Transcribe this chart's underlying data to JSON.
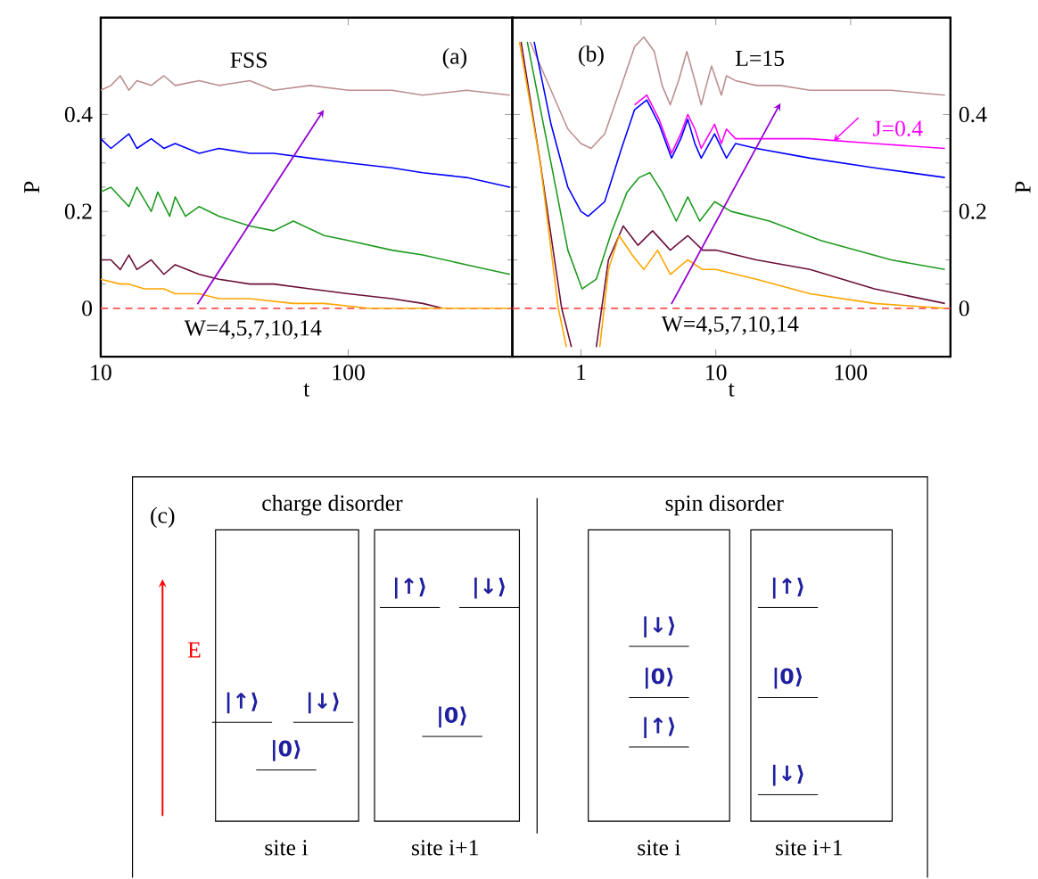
{
  "chart_data": [
    {
      "type": "line",
      "xlabel": "t",
      "ylabel": "P",
      "log": "x",
      "xlim": [
        10,
        460
      ],
      "ylim": [
        -0.1,
        0.6
      ],
      "xticks": [
        10,
        100
      ],
      "yticks": [
        0,
        0.2,
        0.4
      ],
      "annotations": [
        "FSS",
        "(a)",
        "W=4,5,7,10,14"
      ],
      "ref_lines": [
        {
          "axis": "y",
          "value": 0,
          "color": "#ff5050",
          "line_style": "dashed"
        }
      ],
      "series": [
        {
          "color": "#bc8f8f",
          "x": [
            10,
            11,
            12,
            13,
            14,
            16,
            18,
            20,
            25,
            30,
            40,
            50,
            70,
            100,
            150,
            200,
            300,
            450
          ],
          "values": [
            0.45,
            0.46,
            0.48,
            0.45,
            0.47,
            0.46,
            0.48,
            0.46,
            0.47,
            0.46,
            0.47,
            0.45,
            0.46,
            0.45,
            0.45,
            0.44,
            0.45,
            0.44
          ]
        },
        {
          "color": "#0000ff",
          "x": [
            10,
            11,
            13,
            14,
            16,
            18,
            20,
            25,
            30,
            40,
            50,
            70,
            100,
            150,
            200,
            300,
            450
          ],
          "values": [
            0.35,
            0.33,
            0.36,
            0.33,
            0.35,
            0.33,
            0.34,
            0.32,
            0.33,
            0.32,
            0.32,
            0.31,
            0.3,
            0.29,
            0.28,
            0.27,
            0.25
          ]
        },
        {
          "color": "#1e9a1e",
          "x": [
            10,
            11,
            13,
            14,
            16,
            17,
            19,
            20,
            22,
            25,
            30,
            40,
            50,
            60,
            80,
            100,
            150,
            200,
            300,
            450
          ],
          "values": [
            0.24,
            0.25,
            0.21,
            0.25,
            0.2,
            0.24,
            0.19,
            0.23,
            0.19,
            0.21,
            0.19,
            0.17,
            0.16,
            0.18,
            0.15,
            0.14,
            0.12,
            0.11,
            0.09,
            0.07
          ]
        },
        {
          "color": "#6a0f3a",
          "x": [
            10,
            11,
            12,
            13,
            14,
            16,
            18,
            20,
            25,
            30,
            40,
            50,
            70,
            100,
            150,
            200,
            240
          ],
          "values": [
            0.1,
            0.1,
            0.08,
            0.11,
            0.08,
            0.1,
            0.07,
            0.09,
            0.07,
            0.06,
            0.05,
            0.05,
            0.04,
            0.03,
            0.02,
            0.01,
            0.0
          ]
        },
        {
          "color": "#ffa500",
          "x": [
            10,
            12,
            13,
            15,
            18,
            20,
            25,
            30,
            40,
            60,
            80,
            120,
            200,
            450
          ],
          "values": [
            0.06,
            0.05,
            0.05,
            0.04,
            0.04,
            0.03,
            0.03,
            0.02,
            0.02,
            0.01,
            0.01,
            0.0,
            0.0,
            0.0
          ]
        }
      ]
    },
    {
      "type": "line",
      "xlabel": "t",
      "ylabel": "P",
      "log": "x",
      "xlim": [
        0.31,
        550
      ],
      "ylim": [
        -0.1,
        0.6
      ],
      "xticks": [
        1,
        10,
        100
      ],
      "yticks": [
        0,
        0.2,
        0.4
      ],
      "annotations": [
        "(b)",
        "L=15",
        "W=4,5,7,10,14"
      ],
      "ref_lines": [
        {
          "axis": "y",
          "value": 0,
          "color": "#ff5050",
          "line_style": "dashed"
        }
      ],
      "series": [
        {
          "color": "#bc8f8f",
          "x": [
            0.42,
            0.6,
            0.8,
            1.0,
            1.19,
            1.5,
            2.0,
            2.5,
            2.93,
            3.5,
            4.0,
            4.6,
            5.3,
            6.1,
            7.0,
            7.8,
            8.5,
            9.3,
            11,
            12,
            14,
            20,
            30,
            50,
            100,
            200,
            500
          ],
          "values": [
            0.55,
            0.45,
            0.37,
            0.34,
            0.33,
            0.36,
            0.46,
            0.54,
            0.56,
            0.53,
            0.46,
            0.42,
            0.47,
            0.53,
            0.47,
            0.42,
            0.46,
            0.5,
            0.44,
            0.48,
            0.47,
            0.46,
            0.46,
            0.45,
            0.45,
            0.45,
            0.44
          ]
        },
        {
          "name": "J=0.4",
          "color": "#ff00ff",
          "x": [
            2.5,
            3.08,
            3.8,
            4.7,
            5.5,
            6.2,
            7.0,
            7.8,
            9.8,
            11,
            12,
            14,
            20,
            50,
            150,
            500
          ],
          "values": [
            0.42,
            0.44,
            0.39,
            0.32,
            0.36,
            0.4,
            0.37,
            0.33,
            0.38,
            0.34,
            0.37,
            0.35,
            0.35,
            0.35,
            0.34,
            0.33
          ]
        },
        {
          "color": "#0000ff",
          "x": [
            0.45,
            0.6,
            0.8,
            1.0,
            1.13,
            1.5,
            2.0,
            2.5,
            3.08,
            3.8,
            4.7,
            5.5,
            6.2,
            7.0,
            7.8,
            9.8,
            12,
            14,
            20,
            50,
            150,
            500
          ],
          "values": [
            0.55,
            0.38,
            0.25,
            0.2,
            0.19,
            0.22,
            0.33,
            0.41,
            0.43,
            0.38,
            0.31,
            0.35,
            0.39,
            0.34,
            0.31,
            0.36,
            0.31,
            0.34,
            0.33,
            0.31,
            0.29,
            0.27
          ]
        },
        {
          "color": "#1e9a1e",
          "x": [
            0.4,
            0.6,
            0.8,
            1.02,
            1.3,
            1.7,
            2.2,
            2.7,
            3.24,
            4.0,
            5.1,
            6.2,
            7.6,
            9.8,
            13,
            25,
            60,
            200,
            500
          ],
          "values": [
            0.55,
            0.3,
            0.12,
            0.04,
            0.06,
            0.16,
            0.24,
            0.27,
            0.28,
            0.24,
            0.18,
            0.23,
            0.18,
            0.22,
            0.2,
            0.18,
            0.14,
            0.1,
            0.08
          ]
        },
        {
          "color": "#6a0f3a",
          "x": [
            0.36,
            0.5,
            0.72,
            0.85,
            1.05,
            1.3,
            1.6,
            2.06,
            2.65,
            3.4,
            4.6,
            6.2,
            8,
            10,
            20,
            50,
            150,
            500
          ],
          "values": [
            0.55,
            0.3,
            0.0,
            -0.08,
            null,
            -0.08,
            0.1,
            0.17,
            0.13,
            0.16,
            0.12,
            0.15,
            0.12,
            0.12,
            0.1,
            0.08,
            0.04,
            0.01
          ]
        },
        {
          "color": "#ffa500",
          "x": [
            0.35,
            0.5,
            0.68,
            0.78,
            1.0,
            1.38,
            1.6,
            1.92,
            2.4,
            2.93,
            3.7,
            4.6,
            6.2,
            8,
            10,
            20,
            50,
            150,
            500
          ],
          "values": [
            0.55,
            0.3,
            0.0,
            -0.08,
            null,
            -0.08,
            0.08,
            0.15,
            0.11,
            0.08,
            0.12,
            0.07,
            0.1,
            0.08,
            0.08,
            0.06,
            0.03,
            0.01,
            0.0
          ]
        }
      ]
    },
    {
      "type": "other",
      "title": "(c)",
      "annotations": [
        "charge disorder",
        "spin disorder",
        "E",
        "|↑⟩",
        "|↓⟩",
        "|0⟩",
        "|↑⟩",
        "|↓⟩",
        "|0⟩",
        "|↓⟩",
        "|0⟩",
        "|↑⟩",
        "|↑⟩",
        "|0⟩",
        "|↓⟩",
        "site i",
        "site i+1",
        "site i",
        "site i+1"
      ]
    }
  ]
}
